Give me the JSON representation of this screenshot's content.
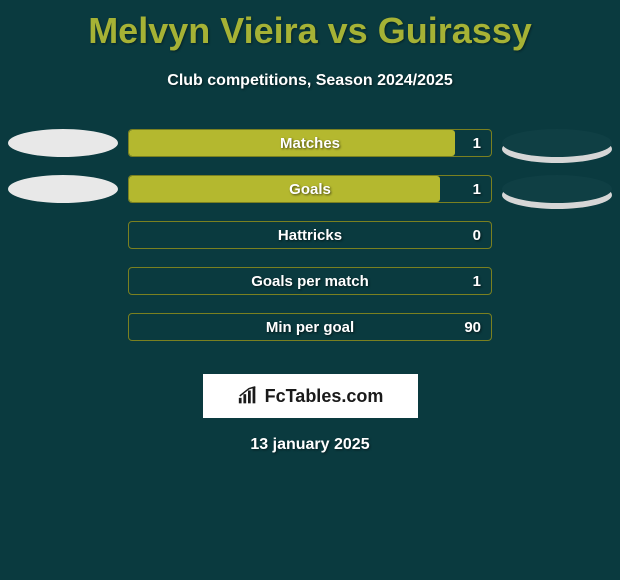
{
  "title": "Melvyn Vieira vs Guirassy",
  "subtitle": "Club competitions, Season 2024/2025",
  "date": "13 january 2025",
  "logo_text": "FcTables.com",
  "background_color": "#0a3a3f",
  "title_color": "#a6b235",
  "text_color": "#ffffff",
  "bar_fill_color": "#b4b82f",
  "bar_border_color": "#7a8020",
  "logo_bg": "#ffffff",
  "logo_text_color": "#1a1a1a",
  "left_ellipse_color": "#e8e8e8",
  "right_ellipse_color": "#0f3f44",
  "right_ellipse_shadow": "#d6d6d6",
  "stats": [
    {
      "label": "Matches",
      "value": "1",
      "fill_pct": 90,
      "left_ellipse": true,
      "right_ellipse": true
    },
    {
      "label": "Goals",
      "value": "1",
      "fill_pct": 86,
      "left_ellipse": true,
      "right_ellipse": true
    },
    {
      "label": "Hattricks",
      "value": "0",
      "fill_pct": 0,
      "left_ellipse": false,
      "right_ellipse": false
    },
    {
      "label": "Goals per match",
      "value": "1",
      "fill_pct": 0,
      "left_ellipse": false,
      "right_ellipse": false
    },
    {
      "label": "Min per goal",
      "value": "90",
      "fill_pct": 0,
      "left_ellipse": false,
      "right_ellipse": false
    }
  ],
  "title_fontsize": 36,
  "subtitle_fontsize": 16,
  "bar_label_fontsize": 15,
  "date_fontsize": 16
}
